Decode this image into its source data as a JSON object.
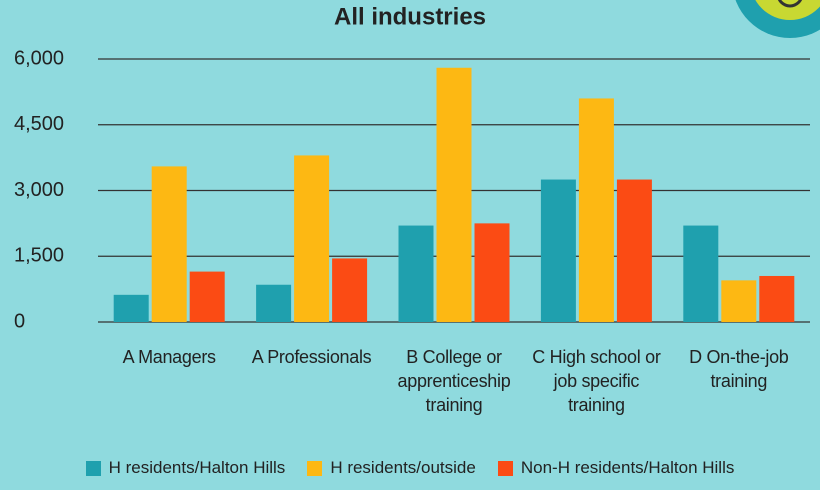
{
  "chart_data": {
    "type": "bar",
    "title": "All industries",
    "categories": [
      "A Managers",
      "A Professionals",
      "B College or apprenticeship training",
      "C High school or job specific training",
      "D On-the-job training"
    ],
    "series": [
      {
        "name": "H residents/Halton Hills",
        "color": "#1fa0ae",
        "values": [
          620,
          850,
          2200,
          3250,
          2200
        ]
      },
      {
        "name": "H residents/outside",
        "color": "#fdb813",
        "values": [
          3550,
          3800,
          5800,
          5100,
          950
        ]
      },
      {
        "name": "Non-H residents/Halton Hills",
        "color": "#fb4b14",
        "values": [
          1150,
          1450,
          2250,
          3250,
          1050
        ]
      }
    ],
    "ylim": [
      0,
      6000
    ],
    "yticks": [
      0,
      {
        "value": 1500,
        "label": "1,500"
      },
      {
        "value": 3000,
        "label": "3,000"
      },
      {
        "value": 4500,
        "label": "4,500"
      },
      {
        "value": 6000,
        "label": "6,000"
      }
    ],
    "grid": true
  }
}
